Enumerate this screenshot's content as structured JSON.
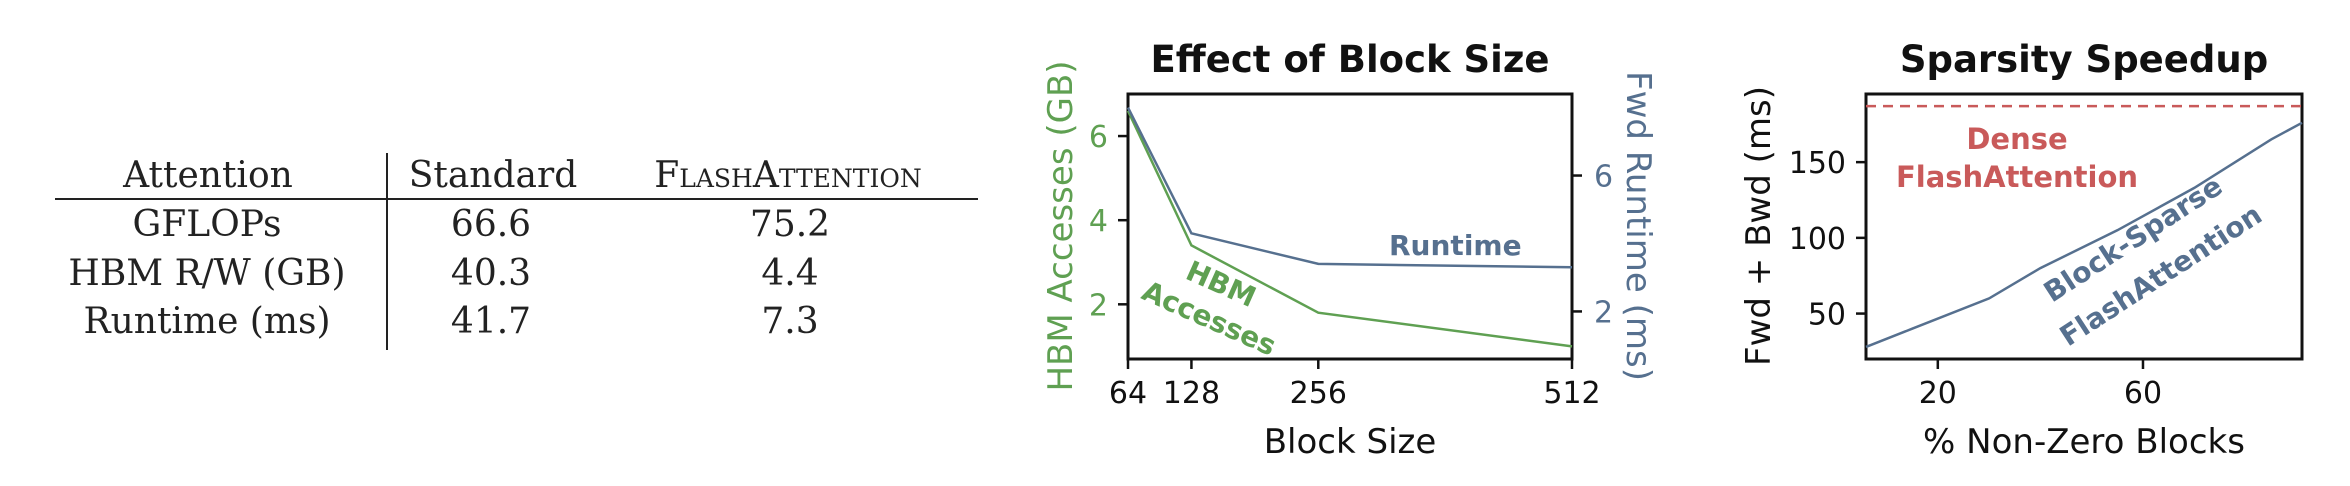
{
  "table": {
    "headers": [
      "Attention",
      "Standard",
      "FlashAttention"
    ],
    "rows": [
      [
        "GFLOPs",
        "66.6",
        "75.2"
      ],
      [
        "HBM R/W (GB)",
        "40.3",
        "4.4"
      ],
      [
        "Runtime (ms)",
        "41.7",
        "7.3"
      ]
    ]
  },
  "chart_data": [
    {
      "type": "line",
      "title": "Effect of Block Size",
      "xlabel": "Block Size",
      "ylabel": "HBM Accesses (GB)",
      "ylabel_right": "Fwd Runtime (ms)",
      "x": [
        64,
        128,
        256,
        512
      ],
      "xticks": [
        64,
        128,
        256,
        512
      ],
      "xlim": [
        64,
        512
      ],
      "ylim": [
        0.7,
        7.0
      ],
      "yticks": [
        2,
        4,
        6
      ],
      "ylim_right": [
        0.6,
        8.4
      ],
      "yticks_right": [
        2,
        6
      ],
      "grid": false,
      "series": [
        {
          "name": "HBM Accesses",
          "axis": "left",
          "color": "#5fa052",
          "values": [
            6.6,
            3.4,
            1.8,
            1.0
          ]
        },
        {
          "name": "Runtime",
          "axis": "right",
          "color": "#56708f",
          "values": [
            8.0,
            4.3,
            3.4,
            3.3
          ]
        }
      ],
      "annotations": [
        "Runtime",
        "HBM",
        "Accesses"
      ],
      "label_color_left": "#5fa052",
      "label_color_right": "#56708f"
    },
    {
      "type": "line",
      "title": "Sparsity Speedup",
      "xlabel": "% Non-Zero Blocks",
      "ylabel": "Fwd + Bwd (ms)",
      "x": [
        6,
        15,
        30,
        40,
        55,
        70,
        85,
        91
      ],
      "xticks": [
        20,
        60
      ],
      "xlim": [
        6,
        91
      ],
      "ylim": [
        20,
        195
      ],
      "yticks": [
        50,
        100,
        150
      ],
      "grid": false,
      "series": [
        {
          "name": "Block-Sparse FlashAttention",
          "color": "#56708f",
          "values": [
            28,
            40,
            60,
            80,
            105,
            133,
            165,
            176
          ]
        },
        {
          "name": "Dense FlashAttention",
          "color": "#c95a5a",
          "dashed": true,
          "values": [
            187,
            187,
            187,
            187,
            187,
            187,
            187,
            187
          ]
        }
      ],
      "annotations": [
        "Dense",
        "FlashAttention",
        "Block-Sparse",
        "FlashAttention"
      ]
    }
  ]
}
